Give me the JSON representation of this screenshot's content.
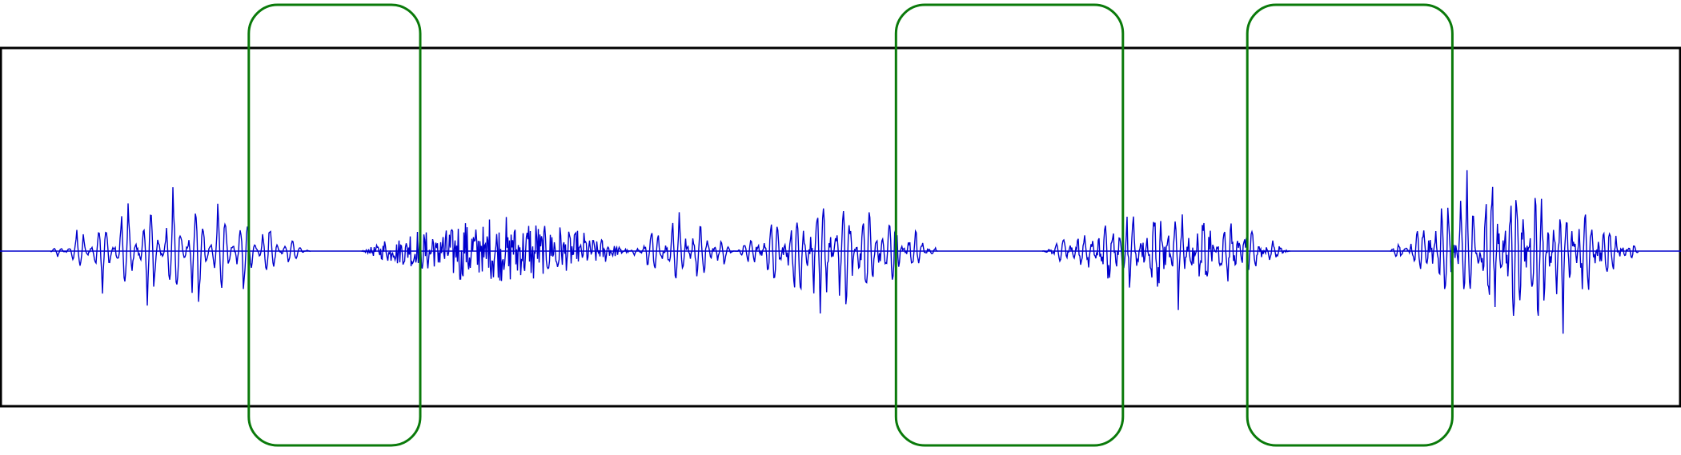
{
  "colors": {
    "background": "#ffffff",
    "frame": "#000000",
    "waveform": "#0000cc",
    "highlight": "#0a7a0a"
  },
  "waveform": {
    "description_free": true,
    "segments": [
      {
        "start": 0.03,
        "end": 0.185,
        "amplitude": 0.85,
        "pitch": 0.75,
        "noise": 0.05
      },
      {
        "start": 0.215,
        "end": 0.375,
        "amplitude": 0.55,
        "pitch": 0.7,
        "noise": 0.6
      },
      {
        "start": 0.375,
        "end": 0.437,
        "amplitude": 0.62,
        "pitch": 0.8,
        "noise": 0.1
      },
      {
        "start": 0.437,
        "end": 0.558,
        "amplitude": 1.0,
        "pitch": 0.85,
        "noise": 0.12
      },
      {
        "start": 0.62,
        "end": 0.768,
        "amplitude": 0.8,
        "pitch": 0.8,
        "noise": 0.2
      },
      {
        "start": 0.827,
        "end": 0.975,
        "amplitude": 1.3,
        "pitch": 0.9,
        "noise": 0.15
      }
    ]
  },
  "highlights": [
    {
      "name": "highlight-region-1",
      "start": 0.148,
      "end": 0.25
    },
    {
      "name": "highlight-region-2",
      "start": 0.533,
      "end": 0.668
    },
    {
      "name": "highlight-region-3",
      "start": 0.742,
      "end": 0.864
    }
  ]
}
